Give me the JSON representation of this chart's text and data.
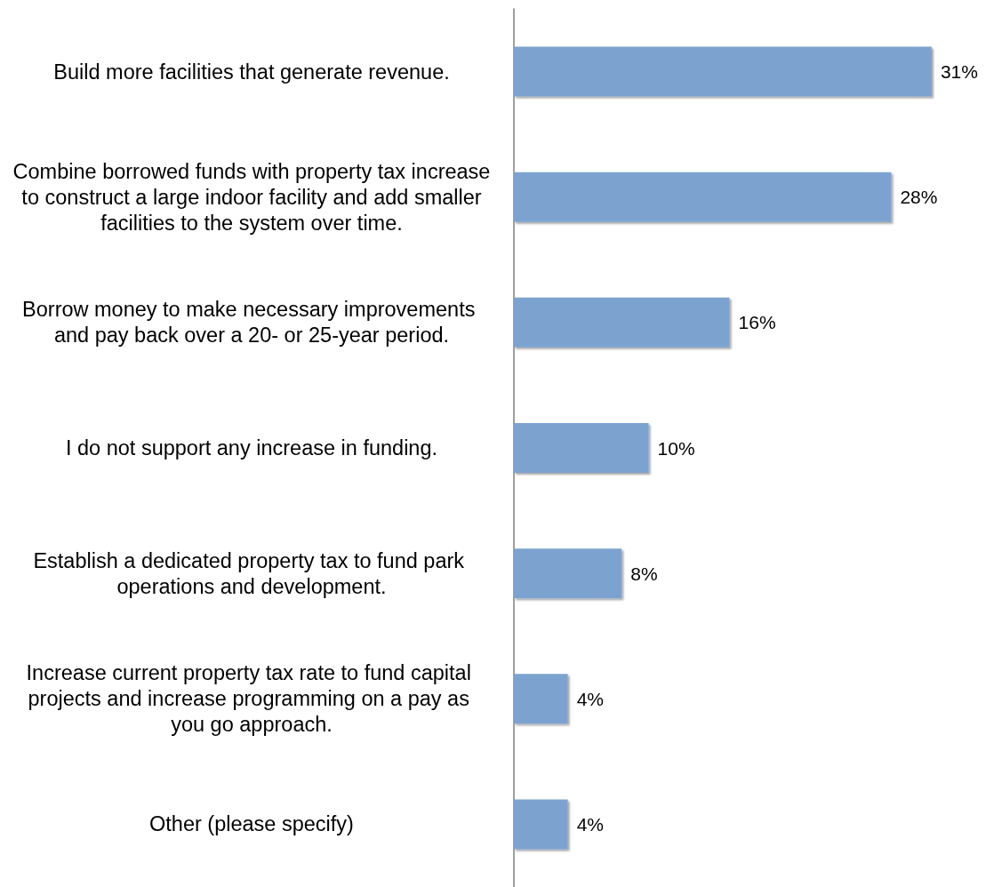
{
  "chart_data": {
    "type": "bar",
    "orientation": "horizontal",
    "categories": [
      "Build more facilities that generate revenue.",
      "Combine borrowed funds with property tax increase to construct a large indoor facility and add smaller facilities to the system over time.",
      "Borrow money to make necessary improvements and pay back over a 20- or 25-year period.",
      "I do not support any increase in funding.",
      "Establish a dedicated property tax to fund park operations and development.",
      "Increase current property tax rate to fund capital projects and increase programming on a pay as you go approach.",
      "Other (please specify)"
    ],
    "values": [
      31,
      28,
      16,
      10,
      8,
      4,
      4
    ],
    "value_labels": [
      "31%",
      "28%",
      "16%",
      "10%",
      "8%",
      "4%",
      "4%"
    ],
    "color": "#7ba3d0",
    "grid": false
  }
}
